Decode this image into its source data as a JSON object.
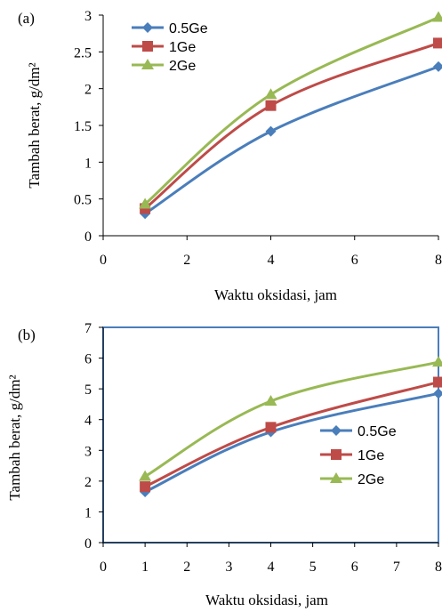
{
  "chart_data": [
    {
      "type": "line",
      "panel_label": "(a)",
      "xlabel": "Waktu oksidasi, jam",
      "ylabel": "Tambah berat, g/dm²",
      "xlim": [
        0,
        8
      ],
      "ylim": [
        0,
        3
      ],
      "x_ticks": [
        "0",
        "2",
        "4",
        "6",
        "8"
      ],
      "y_ticks": [
        "0",
        "0.5",
        "1",
        "1.5",
        "2",
        "2.5",
        "3"
      ],
      "grid": false,
      "legend_position": "top-left",
      "x": [
        1,
        4,
        8
      ],
      "series": [
        {
          "name": "0.5Ge",
          "values": [
            0.3,
            1.42,
            2.3
          ],
          "color": "#4a7ebb",
          "marker": "diamond"
        },
        {
          "name": "1Ge",
          "values": [
            0.37,
            1.77,
            2.62
          ],
          "color": "#be4b48",
          "marker": "square"
        },
        {
          "name": "2Ge",
          "values": [
            0.43,
            1.92,
            2.97
          ],
          "color": "#98b954",
          "marker": "triangle"
        }
      ]
    },
    {
      "type": "line",
      "panel_label": "(b)",
      "xlabel": "Waktu oksidasi, jam",
      "ylabel": "Tambah berat, g/dm²",
      "xlim": [
        0,
        8
      ],
      "ylim": [
        0,
        7
      ],
      "x_ticks": [
        "0",
        "1",
        "2",
        "3",
        "4",
        "5",
        "6",
        "7",
        "8"
      ],
      "y_ticks": [
        "0",
        "1",
        "2",
        "3",
        "4",
        "5",
        "6",
        "7"
      ],
      "grid": false,
      "legend_position": "center-right",
      "x": [
        1,
        4,
        8
      ],
      "series": [
        {
          "name": "0.5Ge",
          "values": [
            1.65,
            3.6,
            4.85
          ],
          "color": "#4a7ebb",
          "marker": "diamond"
        },
        {
          "name": "1Ge",
          "values": [
            1.82,
            3.75,
            5.22
          ],
          "color": "#be4b48",
          "marker": "square"
        },
        {
          "name": "2Ge",
          "values": [
            2.15,
            4.6,
            5.87
          ],
          "color": "#98b954",
          "marker": "triangle"
        }
      ]
    }
  ]
}
